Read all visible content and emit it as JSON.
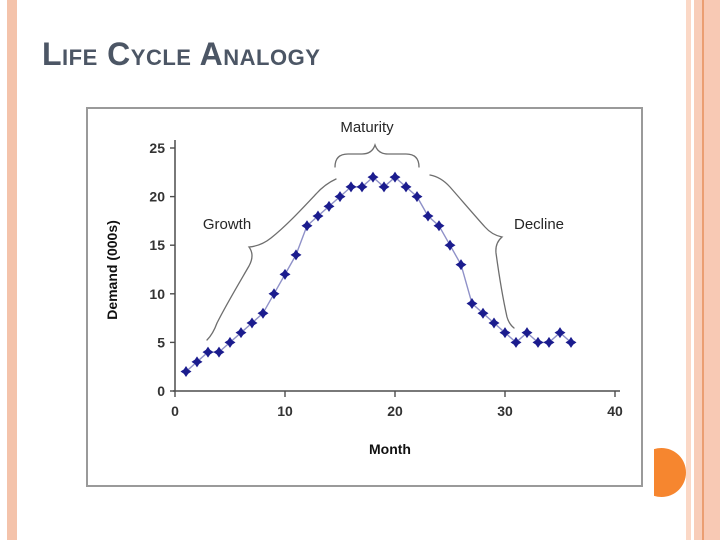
{
  "slide": {
    "title": "Life Cycle Analogy"
  },
  "chart_data": {
    "type": "line",
    "title": "",
    "xlabel": "Month",
    "ylabel": "Demand (000s)",
    "x": [
      1,
      2,
      3,
      4,
      5,
      6,
      7,
      8,
      9,
      10,
      11,
      12,
      13,
      14,
      15,
      16,
      17,
      18,
      19,
      20,
      21,
      22,
      23,
      24,
      25,
      26,
      27,
      28,
      29,
      30,
      31,
      32,
      33,
      34,
      35,
      36
    ],
    "values": [
      2,
      3,
      4,
      4,
      5,
      6,
      7,
      8,
      10,
      12,
      14,
      17,
      18,
      19,
      20,
      21,
      21,
      22,
      21,
      22,
      21,
      20,
      18,
      17,
      15,
      13,
      9,
      8,
      7,
      6,
      5,
      6,
      5,
      5,
      6,
      5
    ],
    "xlim": [
      0,
      40
    ],
    "ylim": [
      0,
      25
    ],
    "xticks": [
      0,
      10,
      20,
      30,
      40
    ],
    "yticks": [
      0,
      5,
      10,
      15,
      20,
      25
    ],
    "grid": false,
    "legend_position": "none",
    "marker": "diamond-star",
    "annotations": [
      {
        "label": "Growth"
      },
      {
        "label": "Maturity"
      },
      {
        "label": "Decline"
      }
    ],
    "colors": {
      "line": "#8f91c8",
      "marker": "#1b1c8e"
    }
  },
  "decor": {
    "title_color": "#4c5665",
    "left_stripe_color": "#f4c3ab",
    "right_band_colors": [
      "#fbd8c6",
      "#f8cdb9",
      "#eb9e72",
      "#f8c9b4"
    ],
    "semicircle_color": "#f6862f",
    "chart_border_color": "#9a9a9a"
  }
}
